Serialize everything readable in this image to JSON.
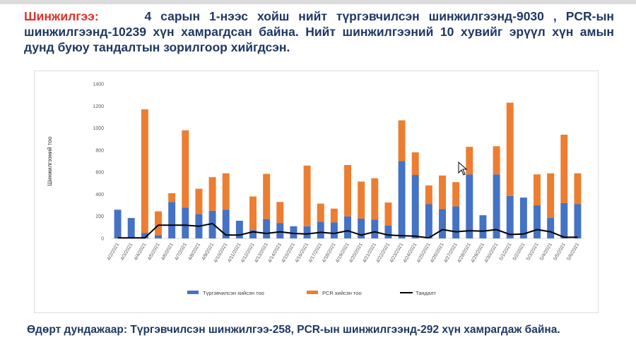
{
  "headline": {
    "lead": "Шинжилгээ:",
    "body": "4 сарын 1-нээс хойш нийт түргэвчилсэн шинжилгээнд-9030 , PCR-ын шинжилгээнд-10239 хүн хамрагдсан байна. Нийт шинжилгээний 10 хувийг эрүүл хүн амын дунд буюу тандалтын зорилгоор хийгдсэн."
  },
  "footer": "Өдөрт дундажаар: Түргэвчилсэн шинжилгээ-258, PCR-ын шинжилгээнд-292 хүн хамрагдаж байна.",
  "icons": {
    "cursor": "mouse-pointer-icon"
  },
  "colors": {
    "rapid": "#4472c4",
    "pcr": "#ed7d31",
    "surveillance": "#000000",
    "headline": "#1f3864",
    "lead": "#e0302a"
  },
  "chart_data": {
    "type": "bar",
    "stacked": true,
    "title": "",
    "xlabel": "",
    "ylabel": "Шинжилгээний тоо",
    "ylim": [
      0,
      1400
    ],
    "yticks": [
      "0",
      "200",
      "400",
      "600",
      "800",
      "1000",
      "1200",
      "1400"
    ],
    "grid": false,
    "legend_position": "bottom",
    "categories": [
      "4/2/2021",
      "4/3/2021",
      "4/4/2021",
      "4/5/2021",
      "4/6/2021",
      "4/7/2021",
      "4/8/2021",
      "4/9/2021",
      "4/10/2021",
      "4/11/2021",
      "4/12/2021",
      "4/13/2021",
      "4/14/2021",
      "4/15/2021",
      "4/16/2021",
      "4/17/2021",
      "4/18/2021",
      "4/19/2021",
      "4/20/2021",
      "4/21/2021",
      "4/22/2021",
      "4/23/2021",
      "4/24/2021",
      "4/25/2021",
      "4/26/2021",
      "4/27/2021",
      "4/28/2021",
      "4/29/2021",
      "4/30/2021",
      "5/1/2021",
      "5/2/2021",
      "5/3/2021",
      "5/4/2021",
      "5/5/2021",
      "5/6/2021"
    ],
    "series": [
      {
        "name": "Түргэвчилсэн хийсэн тоо",
        "kind": "bar",
        "values": [
          260,
          185,
          50,
          30,
          330,
          280,
          220,
          250,
          260,
          160,
          75,
          175,
          140,
          110,
          110,
          150,
          145,
          200,
          180,
          170,
          115,
          700,
          575,
          310,
          265,
          290,
          580,
          210,
          580,
          385,
          370,
          300,
          185,
          320,
          310
        ]
      },
      {
        "name": "PCR хийсэн тоо",
        "kind": "bar",
        "values": [
          0,
          0,
          1120,
          215,
          80,
          700,
          230,
          305,
          330,
          0,
          305,
          410,
          190,
          0,
          550,
          165,
          125,
          465,
          335,
          375,
          210,
          370,
          205,
          170,
          305,
          220,
          250,
          0,
          255,
          845,
          0,
          280,
          405,
          620,
          280
        ]
      },
      {
        "name": "Тандалт",
        "kind": "line",
        "values": [
          5,
          5,
          5,
          120,
          120,
          120,
          110,
          135,
          30,
          30,
          60,
          45,
          60,
          45,
          40,
          55,
          45,
          70,
          30,
          60,
          30,
          25,
          20,
          5,
          80,
          60,
          70,
          65,
          80,
          35,
          40,
          80,
          60,
          10,
          10
        ]
      }
    ]
  }
}
